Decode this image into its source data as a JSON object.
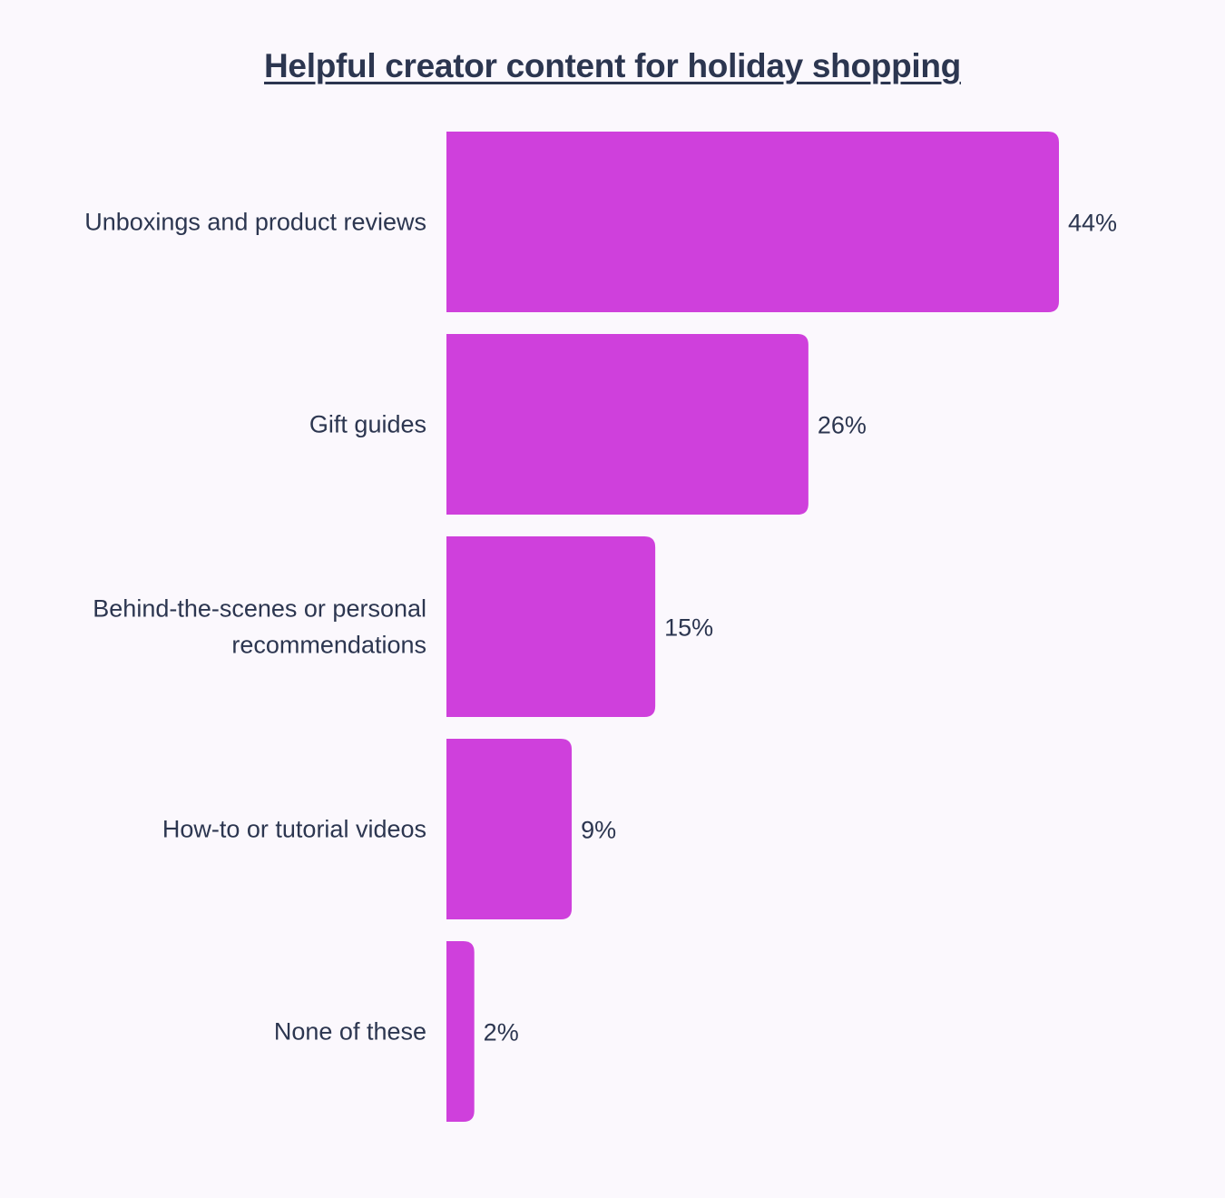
{
  "chart_data": {
    "type": "bar",
    "orientation": "horizontal",
    "title": "Helpful creator content for holiday shopping",
    "categories": [
      [
        "Unboxings and product reviews"
      ],
      [
        "Gift guides"
      ],
      [
        "Behind-the-scenes or personal",
        "recommendations"
      ],
      [
        "How-to or tutorial videos"
      ],
      [
        "None of these"
      ]
    ],
    "values": [
      44,
      26,
      15,
      9,
      2
    ],
    "value_labels": [
      "44%",
      "26%",
      "15%",
      "9%",
      "2%"
    ],
    "unit": "%",
    "xlim": [
      0,
      44
    ],
    "grid": false,
    "legend": "none",
    "colors": {
      "bar": "#cf40dc",
      "text": "#2c3650",
      "background": "#fbf8fd"
    }
  }
}
